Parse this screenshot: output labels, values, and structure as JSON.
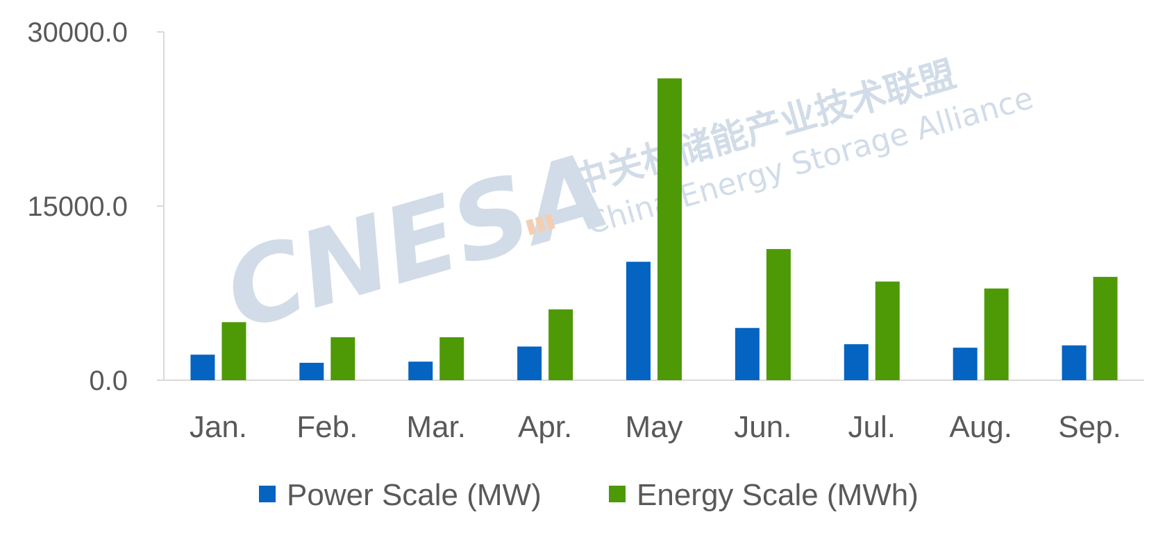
{
  "chart_data": {
    "type": "bar",
    "categories": [
      "Jan.",
      "Feb.",
      "Mar.",
      "Apr.",
      "May",
      "Jun.",
      "Jul.",
      "Aug.",
      "Sep."
    ],
    "series": [
      {
        "name": "Power Scale (MW)",
        "color": "#0563C1",
        "values": [
          2200,
          1500,
          1600,
          2900,
          10200,
          4500,
          3100,
          2800,
          3000
        ]
      },
      {
        "name": "Energy Scale (MWh)",
        "color": "#4E9A06",
        "values": [
          5000,
          3700,
          3700,
          6100,
          26000,
          11300,
          8500,
          7900,
          8900
        ]
      }
    ],
    "y_ticks": [
      "0.0",
      "15000.0",
      "30000.0"
    ],
    "ylim": [
      0,
      30000
    ],
    "grid": false,
    "legend_position": "bottom"
  },
  "watermark": {
    "logo_text": "CNESA",
    "chinese_text": "中关村储能产业技术联盟",
    "english_text": "China Energy Storage Alliance",
    "color": "#C9D6E4"
  }
}
